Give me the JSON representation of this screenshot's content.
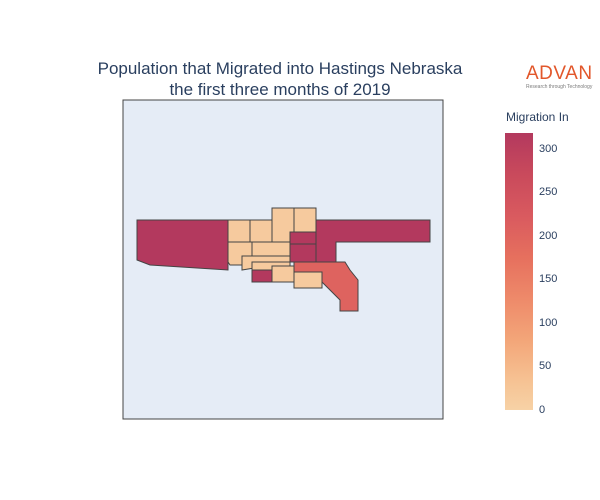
{
  "chart": {
    "title_line1": "Population that Migrated into Hastings Nebraska",
    "title_line2": "the first three months of 2019"
  },
  "logo": {
    "name": "ADVAN",
    "tagline": "Research through Technology",
    "color": "#e2572b"
  },
  "colorbar": {
    "title": "Migration In",
    "ticks": [
      "300",
      "250",
      "200",
      "150",
      "100",
      "50",
      "0"
    ],
    "colorscale": [
      "#f7d2a6",
      "#f3a679",
      "#ee8a6a",
      "#e6705e",
      "#d95a5f",
      "#c94a5c",
      "#b3395e"
    ],
    "range": [
      0,
      318
    ]
  },
  "map": {
    "background": "#e5ecf6",
    "border": "#444444"
  },
  "chart_data": {
    "type": "choropleth",
    "region": "Hastings, Nebraska",
    "variable": "Migration In",
    "color_range": [
      0,
      318
    ],
    "regions": [
      {
        "name": "west-tract",
        "value": 318
      },
      {
        "name": "east-tract",
        "value": 318
      },
      {
        "name": "central-west-a",
        "value": 10
      },
      {
        "name": "central-west-b",
        "value": 10
      },
      {
        "name": "central-west-c",
        "value": 10
      },
      {
        "name": "north-a",
        "value": 10
      },
      {
        "name": "north-b",
        "value": 10
      },
      {
        "name": "north-c",
        "value": 10
      },
      {
        "name": "center-south-a",
        "value": 10
      },
      {
        "name": "center-south-b",
        "value": 10
      },
      {
        "name": "center-south-c",
        "value": 10
      },
      {
        "name": "center-high-a",
        "value": 318
      },
      {
        "name": "center-high-b",
        "value": 318
      },
      {
        "name": "center-high-c",
        "value": 318
      },
      {
        "name": "south-strip",
        "value": 318
      },
      {
        "name": "southeast-tract",
        "value": 190
      },
      {
        "name": "south-small",
        "value": 10
      }
    ]
  }
}
